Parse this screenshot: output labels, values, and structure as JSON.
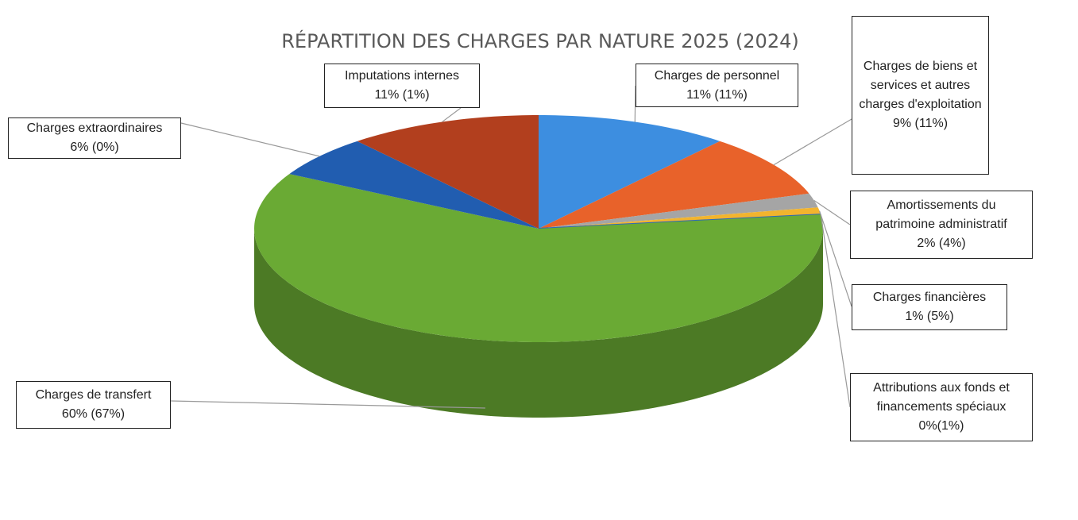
{
  "chart_data": {
    "type": "pie",
    "title": "RÉPARTITION DES CHARGES PAR NATURE 2025 (2024)",
    "categories": [
      "Charges de personnel",
      "Charges de biens et services et autres charges d'exploitation",
      "Amortissements du patrimoine administratif",
      "Charges financières",
      "Attributions aux fonds et financements spéciaux",
      "Charges de transfert",
      "Charges extraordinaires",
      "Imputations internes"
    ],
    "values": [
      11,
      9,
      2,
      1,
      0,
      60,
      6,
      11
    ],
    "value_labels": [
      "11% (11%)",
      "9% (11%)",
      "2% (4%)",
      "1% (5%)",
      "0%(1%)",
      "60% (67%)",
      "6% (0%)",
      "11% (1%)"
    ],
    "colors": [
      "#3d8ee0",
      "#e8622a",
      "#a5a5a5",
      "#f2b42e",
      "#2f67b8",
      "#6aaa34",
      "#215db0",
      "#b23f1e"
    ]
  }
}
